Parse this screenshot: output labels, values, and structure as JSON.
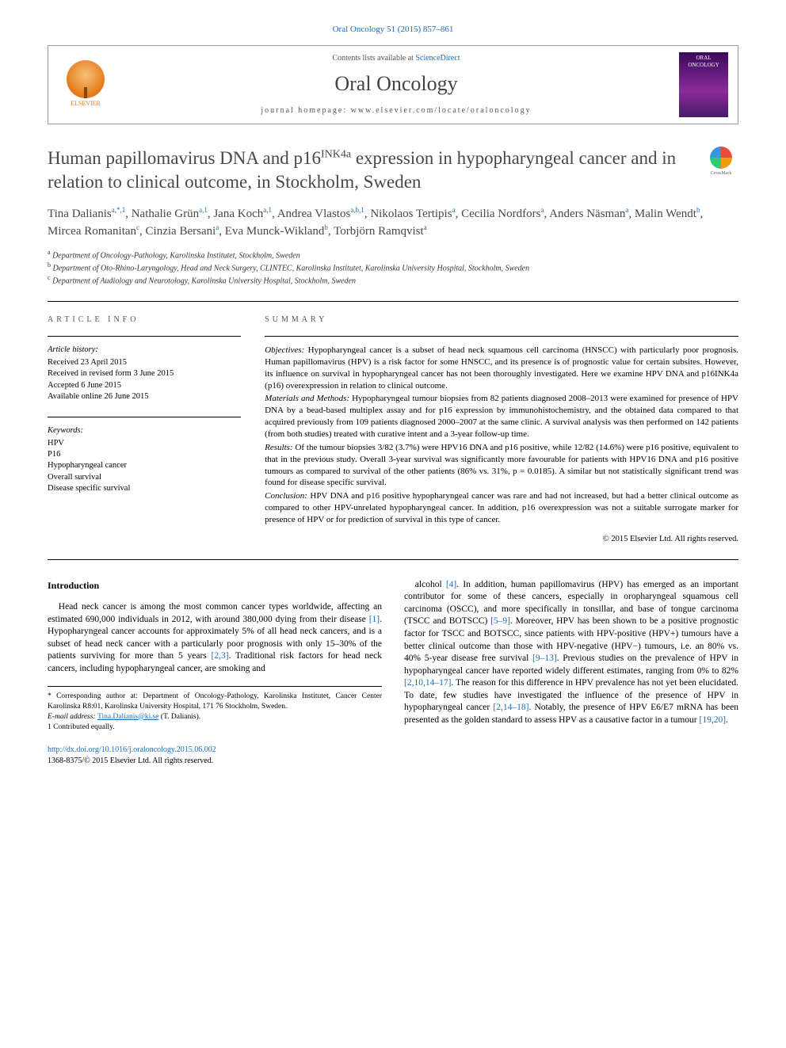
{
  "journalRef": "Oral Oncology 51 (2015) 857–861",
  "header": {
    "contentsPrefix": "Contents lists available at ",
    "contentsLink": "ScienceDirect",
    "journalName": "Oral Oncology",
    "homepage": "journal homepage: www.elsevier.com/locate/oraloncology",
    "publisherLogoLabel": "ELSEVIER",
    "coverTop": "ORAL",
    "coverBottom": "ONCOLOGY"
  },
  "crossmark": "CrossMark",
  "title": {
    "pre": "Human papillomavirus DNA and p16",
    "sup": "INK4a",
    "post": " expression in hypopharyngeal cancer and in relation to clinical outcome, in Stockholm, Sweden"
  },
  "authors": [
    {
      "name": "Tina Dalianis",
      "marks": "a,*,1"
    },
    {
      "name": "Nathalie Grün",
      "marks": "a,1"
    },
    {
      "name": "Jana Koch",
      "marks": "a,1"
    },
    {
      "name": "Andrea Vlastos",
      "marks": "a,b,1"
    },
    {
      "name": "Nikolaos Tertipis",
      "marks": "a"
    },
    {
      "name": "Cecilia Nordfors",
      "marks": "a"
    },
    {
      "name": "Anders Näsman",
      "marks": "a"
    },
    {
      "name": "Malin Wendt",
      "marks": "b"
    },
    {
      "name": "Mircea Romanitan",
      "marks": "c"
    },
    {
      "name": "Cinzia Bersani",
      "marks": "a"
    },
    {
      "name": "Eva Munck-Wikland",
      "marks": "b"
    },
    {
      "name": "Torbjörn Ramqvist",
      "marks": "a"
    }
  ],
  "affiliations": [
    {
      "mark": "a",
      "text": "Department of Oncology-Pathology, Karolinska Institutet, Stockholm, Sweden"
    },
    {
      "mark": "b",
      "text": "Department of Oto-Rhino-Laryngology, Head and Neck Surgery, CLINTEC, Karolinska Institutet, Karolinska University Hospital, Stockholm, Sweden"
    },
    {
      "mark": "c",
      "text": "Department of Audiology and Neurotology, Karolinska University Hospital, Stockholm, Sweden"
    }
  ],
  "articleInfo": {
    "label": "ARTICLE INFO",
    "historyHdr": "Article history:",
    "history": [
      "Received 23 April 2015",
      "Received in revised form 3 June 2015",
      "Accepted 6 June 2015",
      "Available online 26 June 2015"
    ],
    "keywordsHdr": "Keywords:",
    "keywords": [
      "HPV",
      "P16",
      "Hypopharyngeal cancer",
      "Overall survival",
      "Disease specific survival"
    ]
  },
  "summary": {
    "label": "SUMMARY",
    "segments": [
      {
        "label": "Objectives:",
        "text": " Hypopharyngeal cancer is a subset of head neck squamous cell carcinoma (HNSCC) with particularly poor prognosis. Human papillomavirus (HPV) is a risk factor for some HNSCC, and its presence is of prognostic value for certain subsites. However, its influence on survival in hypopharyngeal cancer has not been thoroughly investigated. Here we examine HPV DNA and p16INK4a (p16) overexpression in relation to clinical outcome."
      },
      {
        "label": "Materials and Methods:",
        "text": " Hypopharyngeal tumour biopsies from 82 patients diagnosed 2008–2013 were examined for presence of HPV DNA by a bead-based multiplex assay and for p16 expression by immunohistochemistry, and the obtained data compared to that acquired previously from 109 patients diagnosed 2000–2007 at the same clinic. A survival analysis was then performed on 142 patients (from both studies) treated with curative intent and a 3-year follow-up time."
      },
      {
        "label": "Results:",
        "text": " Of the tumour biopsies 3/82 (3.7%) were HPV16 DNA and p16 positive, while 12/82 (14.6%) were p16 positive, equivalent to that in the previous study. Overall 3-year survival was significantly more favourable for patients with HPV16 DNA and p16 positive tumours as compared to survival of the other patients (86% vs. 31%, p = 0.0185). A similar but not statistically significant trend was found for disease specific survival."
      },
      {
        "label": "Conclusion:",
        "text": " HPV DNA and p16 positive hypopharyngeal cancer was rare and had not increased, but had a better clinical outcome as compared to other HPV-unrelated hypopharyngeal cancer. In addition, p16 overexpression was not a suitable surrogate marker for presence of HPV or for prediction of survival in this type of cancer."
      }
    ],
    "copyright": "© 2015 Elsevier Ltd. All rights reserved."
  },
  "introduction": {
    "heading": "Introduction",
    "col1": "Head neck cancer is among the most common cancer types worldwide, affecting an estimated 690,000 individuals in 2012, with around 380,000 dying from their disease [1]. Hypopharyngeal cancer accounts for approximately 5% of all head neck cancers, and is a subset of head neck cancer with a particularly poor prognosis with only 15–30% of the patients surviving for more than 5 years [2,3]. Traditional risk factors for head neck cancers, including hypopharyngeal cancer, are smoking and",
    "col2": "alcohol [4]. In addition, human papillomavirus (HPV) has emerged as an important contributor for some of these cancers, especially in oropharyngeal squamous cell carcinoma (OSCC), and more specifically in tonsillar, and base of tongue carcinoma (TSCC and BOTSCC) [5–9]. Moreover, HPV has been shown to be a positive prognostic factor for TSCC and BOTSCC, since patients with HPV-positive (HPV+) tumours have a better clinical outcome than those with HPV-negative (HPV−) tumours, i.e. an 80% vs. 40% 5-year disease free survival [9–13]. Previous studies on the prevalence of HPV in hypopharyngeal cancer have reported widely different estimates, ranging from 0% to 82% [2,10,14–17]. The reason for this difference in HPV prevalence has not yet been elucidated. To date, few studies have investigated the influence of the presence of HPV in hypopharyngeal cancer [2,14–18]. Notably, the presence of HPV E6/E7 mRNA has been presented as the golden standard to assess HPV as a causative factor in a tumour [19,20]."
  },
  "footnotes": {
    "corresponding": "* Corresponding author at: Department of Oncology-Pathology, Karolinska Institutet, Cancer Center Karolinska R8:01, Karolinska University Hospital, 171 76 Stockholm, Sweden.",
    "emailLabel": "E-mail address: ",
    "email": "Tina.Dalianis@ki.se",
    "emailWho": " (T. Dalianis).",
    "contributed": "1 Contributed equally."
  },
  "doi": {
    "link": "http://dx.doi.org/10.1016/j.oraloncology.2015.06.002",
    "issn": "1368-8375/© 2015 Elsevier Ltd. All rights reserved."
  },
  "colors": {
    "link": "#1a6bb8",
    "titleGray": "#484848"
  }
}
